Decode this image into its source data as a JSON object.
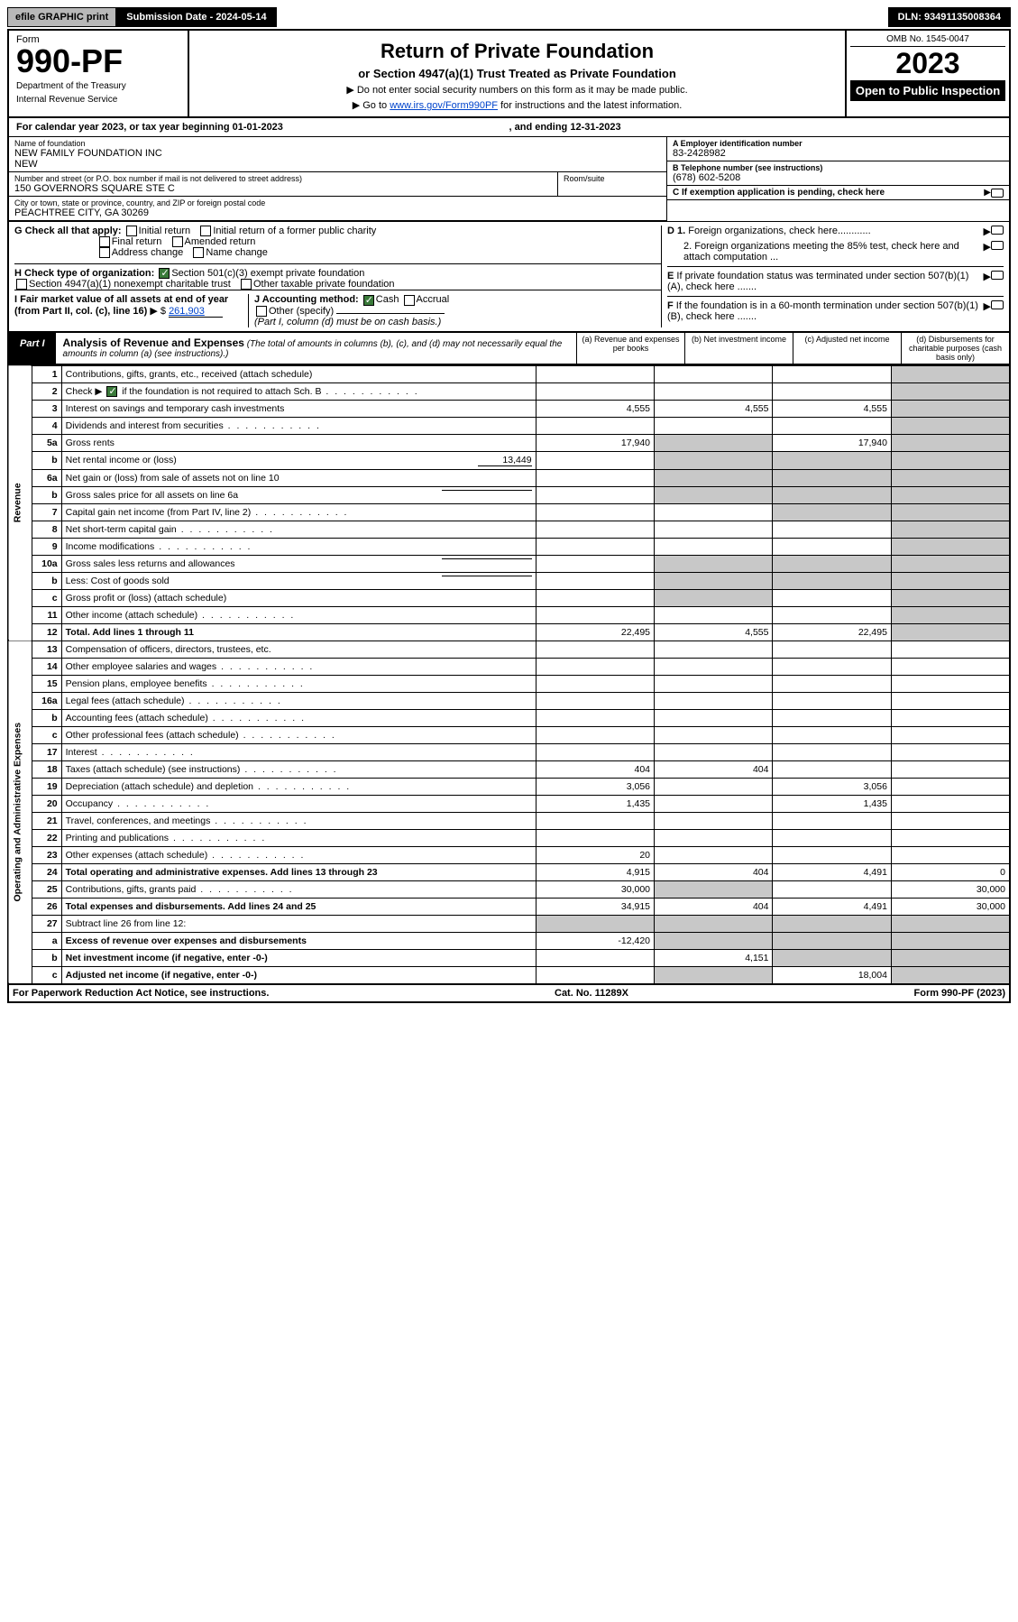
{
  "meta": {
    "efile_button": "efile GRAPHIC print",
    "submission_label": "Submission Date - 2024-05-14",
    "dln": "DLN: 93491135008364",
    "omb": "OMB No. 1545-0047",
    "form_label": "Form",
    "form_number": "990-PF",
    "dept": "Department of the Treasury",
    "irs": "Internal Revenue Service",
    "title": "Return of Private Foundation",
    "subtitle": "or Section 4947(a)(1) Trust Treated as Private Foundation",
    "instr1": "▶ Do not enter social security numbers on this form as it may be made public.",
    "instr2_prefix": "▶ Go to ",
    "instr2_link": "www.irs.gov/Form990PF",
    "instr2_suffix": " for instructions and the latest information.",
    "year": "2023",
    "open": "Open to Public Inspection"
  },
  "cal": {
    "line": "For calendar year 2023, or tax year beginning 01-01-2023",
    "ending": ", and ending 12-31-2023"
  },
  "identity": {
    "name_lbl": "Name of foundation",
    "name": "NEW FAMILY FOUNDATION INC",
    "name2": "NEW",
    "addr_lbl": "Number and street (or P.O. box number if mail is not delivered to street address)",
    "addr": "150 GOVERNORS SQUARE STE C",
    "room_lbl": "Room/suite",
    "city_lbl": "City or town, state or province, country, and ZIP or foreign postal code",
    "city": "PEACHTREE CITY, GA  30269",
    "a_lbl": "A Employer identification number",
    "a_val": "83-2428982",
    "b_lbl": "B Telephone number (see instructions)",
    "b_val": "(678) 602-5208",
    "c_lbl": "C If exemption application is pending, check here",
    "d1_lbl": "D 1. Foreign organizations, check here............",
    "d2_lbl": "2. Foreign organizations meeting the 85% test, check here and attach computation ...",
    "e_lbl": "E If private foundation status was terminated under section 507(b)(1)(A), check here .......",
    "f_lbl": "F If the foundation is in a 60-month termination under section 507(b)(1)(B), check here ......."
  },
  "checks": {
    "g_lbl": "G Check all that apply:",
    "g_initial": "Initial return",
    "g_initial_former": "Initial return of a former public charity",
    "g_final": "Final return",
    "g_amended": "Amended return",
    "g_addr": "Address change",
    "g_name": "Name change",
    "h_lbl": "H Check type of organization:",
    "h_501c3": "Section 501(c)(3) exempt private foundation",
    "h_4947": "Section 4947(a)(1) nonexempt charitable trust",
    "h_other_tax": "Other taxable private foundation",
    "i_lbl": "I Fair market value of all assets at end of year (from Part II, col. (c), line 16)",
    "i_val": "261,903",
    "j_lbl": "J Accounting method:",
    "j_cash": "Cash",
    "j_accrual": "Accrual",
    "j_other": "Other (specify)",
    "j_note": "(Part I, column (d) must be on cash basis.)"
  },
  "part1": {
    "tab": "Part I",
    "title": "Analysis of Revenue and Expenses",
    "note": "(The total of amounts in columns (b), (c), and (d) may not necessarily equal the amounts in column (a) (see instructions).)",
    "col_a": "(a) Revenue and expenses per books",
    "col_b": "(b) Net investment income",
    "col_c": "(c) Adjusted net income",
    "col_d": "(d) Disbursements for charitable purposes (cash basis only)",
    "side_rev": "Revenue",
    "side_exp": "Operating and Administrative Expenses"
  },
  "rows": {
    "r1": {
      "ln": "1",
      "desc": "Contributions, gifts, grants, etc., received (attach schedule)"
    },
    "r2": {
      "ln": "2",
      "desc_pre": "Check ▶",
      "desc_post": " if the foundation is not required to attach Sch. B"
    },
    "r3": {
      "ln": "3",
      "desc": "Interest on savings and temporary cash investments",
      "a": "4,555",
      "b": "4,555",
      "c": "4,555"
    },
    "r4": {
      "ln": "4",
      "desc": "Dividends and interest from securities"
    },
    "r5a": {
      "ln": "5a",
      "desc": "Gross rents",
      "a": "17,940",
      "c": "17,940"
    },
    "r5b": {
      "ln": "b",
      "desc": "Net rental income or (loss)",
      "inline": "13,449"
    },
    "r6a": {
      "ln": "6a",
      "desc": "Net gain or (loss) from sale of assets not on line 10"
    },
    "r6b": {
      "ln": "b",
      "desc": "Gross sales price for all assets on line 6a"
    },
    "r7": {
      "ln": "7",
      "desc": "Capital gain net income (from Part IV, line 2)"
    },
    "r8": {
      "ln": "8",
      "desc": "Net short-term capital gain"
    },
    "r9": {
      "ln": "9",
      "desc": "Income modifications"
    },
    "r10a": {
      "ln": "10a",
      "desc": "Gross sales less returns and allowances"
    },
    "r10b": {
      "ln": "b",
      "desc": "Less: Cost of goods sold"
    },
    "r10c": {
      "ln": "c",
      "desc": "Gross profit or (loss) (attach schedule)"
    },
    "r11": {
      "ln": "11",
      "desc": "Other income (attach schedule)"
    },
    "r12": {
      "ln": "12",
      "desc": "Total. Add lines 1 through 11",
      "a": "22,495",
      "b": "4,555",
      "c": "22,495"
    },
    "r13": {
      "ln": "13",
      "desc": "Compensation of officers, directors, trustees, etc."
    },
    "r14": {
      "ln": "14",
      "desc": "Other employee salaries and wages"
    },
    "r15": {
      "ln": "15",
      "desc": "Pension plans, employee benefits"
    },
    "r16a": {
      "ln": "16a",
      "desc": "Legal fees (attach schedule)"
    },
    "r16b": {
      "ln": "b",
      "desc": "Accounting fees (attach schedule)"
    },
    "r16c": {
      "ln": "c",
      "desc": "Other professional fees (attach schedule)"
    },
    "r17": {
      "ln": "17",
      "desc": "Interest"
    },
    "r18": {
      "ln": "18",
      "desc": "Taxes (attach schedule) (see instructions)",
      "a": "404",
      "b": "404"
    },
    "r19": {
      "ln": "19",
      "desc": "Depreciation (attach schedule) and depletion",
      "a": "3,056",
      "c": "3,056"
    },
    "r20": {
      "ln": "20",
      "desc": "Occupancy",
      "a": "1,435",
      "c": "1,435"
    },
    "r21": {
      "ln": "21",
      "desc": "Travel, conferences, and meetings"
    },
    "r22": {
      "ln": "22",
      "desc": "Printing and publications"
    },
    "r23": {
      "ln": "23",
      "desc": "Other expenses (attach schedule)",
      "a": "20"
    },
    "r24": {
      "ln": "24",
      "desc": "Total operating and administrative expenses. Add lines 13 through 23",
      "a": "4,915",
      "b": "404",
      "c": "4,491",
      "d": "0"
    },
    "r25": {
      "ln": "25",
      "desc": "Contributions, gifts, grants paid",
      "a": "30,000",
      "d": "30,000"
    },
    "r26": {
      "ln": "26",
      "desc": "Total expenses and disbursements. Add lines 24 and 25",
      "a": "34,915",
      "b": "404",
      "c": "4,491",
      "d": "30,000"
    },
    "r27": {
      "ln": "27",
      "desc": "Subtract line 26 from line 12:"
    },
    "r27a": {
      "ln": "a",
      "desc": "Excess of revenue over expenses and disbursements",
      "a": "-12,420"
    },
    "r27b": {
      "ln": "b",
      "desc": "Net investment income (if negative, enter -0-)",
      "b": "4,151"
    },
    "r27c": {
      "ln": "c",
      "desc": "Adjusted net income (if negative, enter -0-)",
      "c": "18,004"
    }
  },
  "footer": {
    "pra": "For Paperwork Reduction Act Notice, see instructions.",
    "cat": "Cat. No. 11289X",
    "form": "Form 990-PF (2023)"
  }
}
